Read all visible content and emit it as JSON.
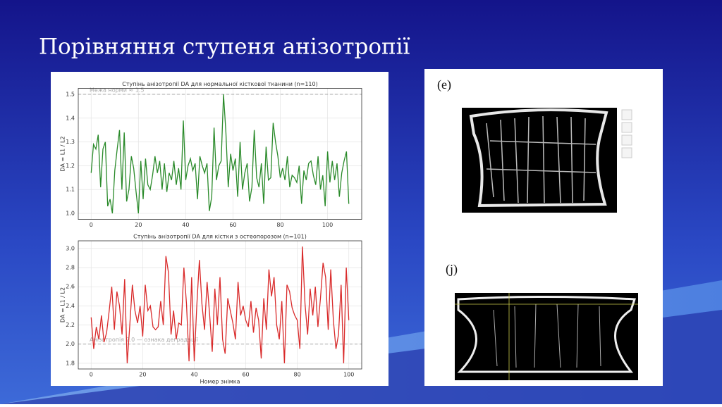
{
  "title": "Порівняння ступеня анізотропії",
  "panel_labels": [
    "(e)",
    "(j)"
  ],
  "chart_data": [
    {
      "type": "line",
      "title": "Ступінь анізотропії DA для нормальної кісткової тканини (n=110)",
      "y_label": "DA = L1 / L2",
      "xlim": [
        -5.45,
        114.45
      ],
      "ylim": [
        0.975,
        1.525
      ],
      "xticks": [
        0,
        20,
        40,
        60,
        80,
        100
      ],
      "yticks": [
        {
          "value": 1.0,
          "label": "1.0"
        },
        1.1,
        1.2,
        1.3,
        1.4,
        1.5
      ],
      "grid": true,
      "annotations": [
        {
          "text": "Межа норми ≈ 1.5",
          "y": 1.5
        }
      ],
      "series": [
        {
          "color": "#2a8a2a",
          "values": [
            1.17,
            1.29,
            1.27,
            1.33,
            1.11,
            1.27,
            1.3,
            1.03,
            1.06,
            1.0,
            1.18,
            1.27,
            1.35,
            1.1,
            1.34,
            1.05,
            1.1,
            1.24,
            1.19,
            1.09,
            1.0,
            1.22,
            1.06,
            1.23,
            1.12,
            1.1,
            1.16,
            1.24,
            1.17,
            1.22,
            1.1,
            1.21,
            1.09,
            1.17,
            1.14,
            1.22,
            1.12,
            1.19,
            1.1,
            1.39,
            1.14,
            1.2,
            1.23,
            1.18,
            1.21,
            1.06,
            1.24,
            1.2,
            1.17,
            1.21,
            1.01,
            1.07,
            1.36,
            1.14,
            1.2,
            1.22,
            1.5,
            1.34,
            1.11,
            1.25,
            1.18,
            1.23,
            1.07,
            1.3,
            1.1,
            1.17,
            1.21,
            1.05,
            1.11,
            1.35,
            1.15,
            1.11,
            1.21,
            1.04,
            1.28,
            1.14,
            1.15,
            1.38,
            1.3,
            1.24,
            1.15,
            1.19,
            1.14,
            1.24,
            1.11,
            1.16,
            1.15,
            1.13,
            1.2,
            1.04,
            1.18,
            1.14,
            1.21,
            1.22,
            1.16,
            1.12,
            1.24,
            1.1,
            1.16,
            1.03,
            1.26,
            1.13,
            1.22,
            1.14,
            1.21,
            1.07,
            1.17,
            1.22,
            1.26,
            1.04
          ]
        }
      ]
    },
    {
      "type": "line",
      "title": "Ступінь анізотропії DA для кістки з остеопорозом (n=101)",
      "x_label": "Номер знімка",
      "y_label": "DA = L1 / L2",
      "xlim": [
        -5,
        105
      ],
      "ylim": [
        1.74,
        3.08
      ],
      "xticks": [
        0,
        20,
        40,
        60,
        80,
        100
      ],
      "yticks": [
        1.8,
        {
          "value": 2.0,
          "label": "2.0"
        },
        2.2,
        2.4,
        2.6,
        2.8,
        {
          "value": 3.0,
          "label": "3.0"
        }
      ],
      "grid": true,
      "annotations": [
        {
          "text": "Анізотропія 2.0 — ознака деградації",
          "y": 2.0
        }
      ],
      "series": [
        {
          "color": "#d92b2b",
          "values": [
            2.28,
            1.95,
            2.18,
            2.05,
            2.3,
            2.02,
            2.12,
            2.35,
            2.6,
            2.15,
            2.55,
            2.4,
            2.1,
            2.68,
            1.8,
            2.2,
            2.62,
            2.35,
            2.22,
            2.4,
            2.08,
            2.62,
            2.35,
            2.4,
            2.18,
            2.15,
            2.18,
            2.45,
            2.2,
            2.92,
            2.75,
            2.1,
            2.35,
            2.05,
            2.22,
            2.2,
            2.8,
            2.42,
            1.82,
            2.7,
            1.82,
            2.4,
            2.88,
            2.42,
            2.15,
            2.65,
            2.3,
            1.92,
            2.58,
            2.2,
            2.7,
            2.05,
            1.9,
            2.48,
            2.35,
            2.22,
            2.05,
            2.65,
            2.3,
            2.4,
            2.25,
            2.18,
            2.45,
            2.12,
            2.38,
            2.25,
            1.85,
            2.48,
            2.15,
            2.78,
            2.5,
            2.7,
            2.2,
            2.05,
            2.45,
            1.8,
            2.62,
            2.55,
            2.38,
            2.3,
            2.25,
            1.95,
            3.02,
            2.42,
            2.1,
            2.58,
            2.3,
            2.6,
            2.18,
            2.48,
            2.85,
            2.7,
            2.15,
            2.78,
            2.25,
            1.95,
            2.1,
            2.62,
            1.8,
            2.8,
            2.25
          ]
        }
      ]
    }
  ]
}
